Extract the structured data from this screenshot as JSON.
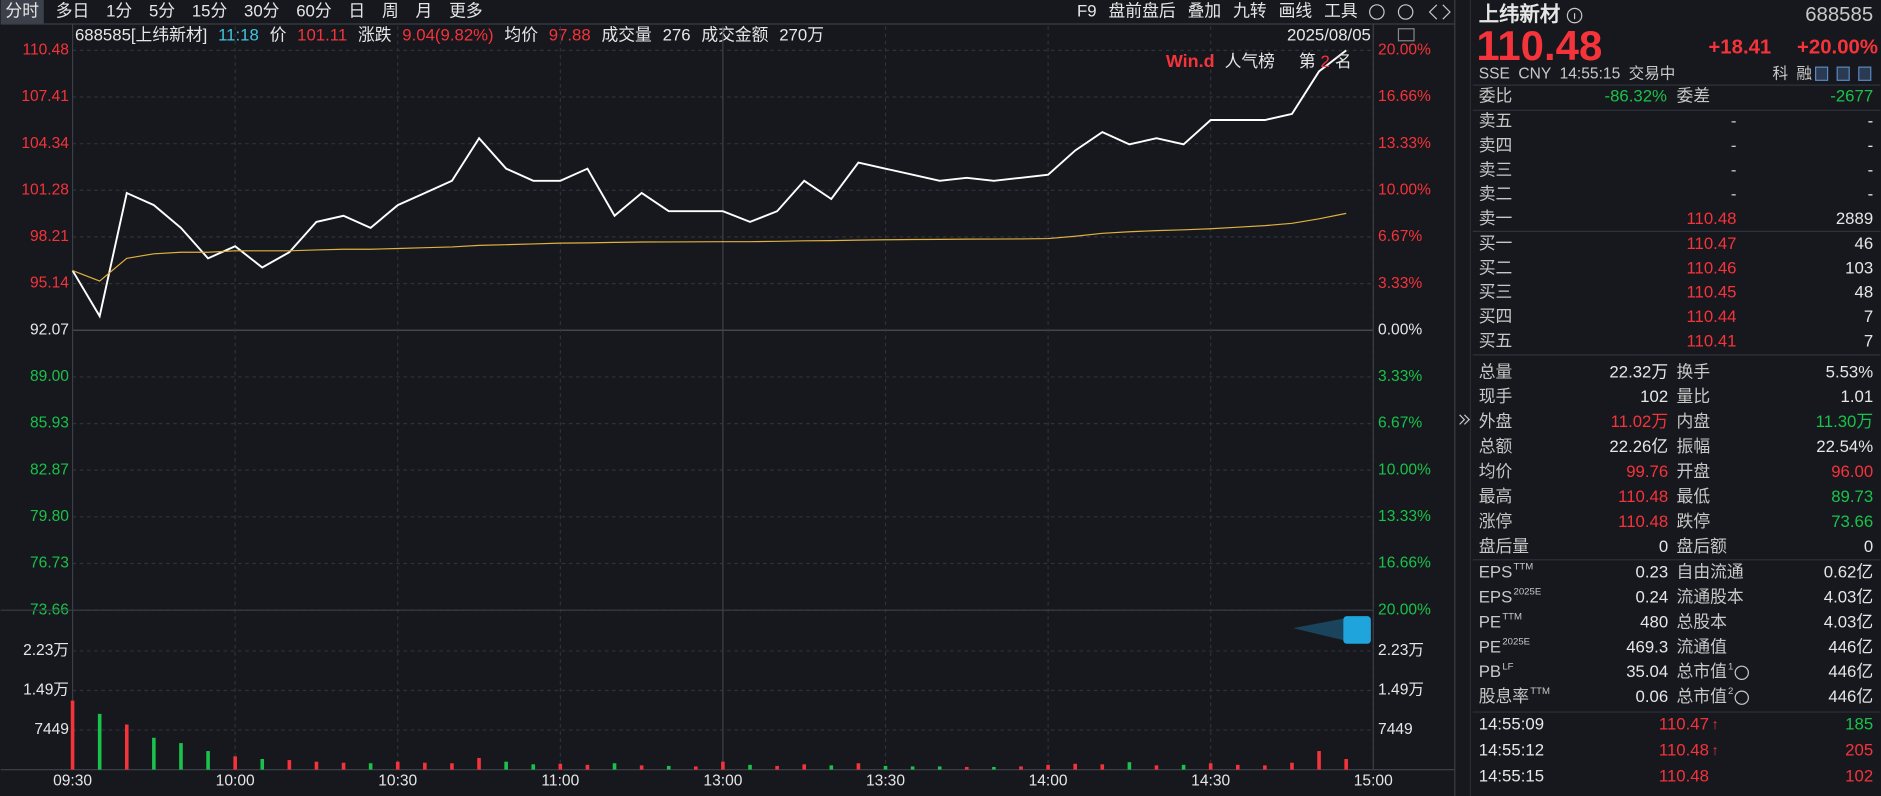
{
  "toolbar": {
    "periods": [
      "分时",
      "多日",
      "1分",
      "5分",
      "15分",
      "30分",
      "60分",
      "日",
      "周",
      "月",
      "更多"
    ],
    "tools": [
      "F9",
      "盘前盘后",
      "叠加",
      "九转",
      "画线",
      "工具"
    ]
  },
  "quote_bar": {
    "code_name": "688585[上纬新材]",
    "time": "11:18",
    "price": "101.11",
    "change_label": "涨跌",
    "change": "9.04(9.82%)",
    "avg": "97.88",
    "vol": "276",
    "amount_label": "成交金额",
    "amount": "270万",
    "date": "2025/08/05"
  },
  "badge": {
    "brand": "Win.d",
    "text": "人气榜",
    "rank_prefix": "第",
    "rank": "2",
    "rank_suffix": "名"
  },
  "chart_data": [
    {
      "type": "line",
      "categories": [
        "09:30",
        "09:35",
        "09:40",
        "09:45",
        "09:50",
        "09:55",
        "10:00",
        "10:05",
        "10:10",
        "10:15",
        "10:20",
        "10:25",
        "10:30",
        "10:35",
        "10:40",
        "10:45",
        "10:50",
        "10:55",
        "11:00",
        "11:05",
        "11:10",
        "11:15",
        "11:20",
        "11:25",
        "13:00",
        "13:05",
        "13:10",
        "13:15",
        "13:20",
        "13:25",
        "13:30",
        "13:35",
        "13:40",
        "13:45",
        "13:50",
        "13:55",
        "14:00",
        "14:05",
        "14:10",
        "14:15",
        "14:20",
        "14:25",
        "14:30",
        "14:35",
        "14:40",
        "14:45",
        "14:50",
        "14:55"
      ],
      "series": [
        {
          "name": "价",
          "color": "#ffffff",
          "values": [
            96.0,
            93.0,
            101.1,
            100.3,
            98.8,
            96.8,
            97.6,
            96.2,
            97.2,
            99.2,
            99.6,
            98.8,
            100.3,
            101.1,
            101.9,
            104.7,
            102.7,
            101.9,
            101.9,
            102.7,
            99.6,
            101.1,
            99.9,
            99.9,
            99.9,
            99.2,
            99.9,
            101.9,
            100.7,
            103.1,
            102.7,
            102.3,
            101.9,
            102.1,
            101.9,
            102.1,
            102.3,
            103.9,
            105.1,
            104.3,
            104.7,
            104.3,
            105.9,
            105.9,
            105.9,
            106.3,
            109.1,
            110.48
          ]
        },
        {
          "name": "均价",
          "color": "#e0b040",
          "values": [
            96.0,
            95.3,
            96.8,
            97.1,
            97.2,
            97.2,
            97.3,
            97.3,
            97.3,
            97.35,
            97.4,
            97.4,
            97.45,
            97.5,
            97.55,
            97.65,
            97.7,
            97.75,
            97.8,
            97.82,
            97.85,
            97.87,
            97.88,
            97.89,
            97.9,
            97.9,
            97.92,
            97.95,
            97.97,
            98.0,
            98.02,
            98.04,
            98.05,
            98.06,
            98.07,
            98.08,
            98.1,
            98.25,
            98.45,
            98.55,
            98.62,
            98.68,
            98.75,
            98.85,
            98.95,
            99.1,
            99.4,
            99.76
          ]
        }
      ],
      "xlim": [
        "09:30",
        "15:00"
      ],
      "ylim": [
        73.66,
        110.48
      ],
      "yticks": [
        110.48,
        107.41,
        104.34,
        101.28,
        98.21,
        95.14,
        92.07,
        {
          "value": 89,
          "label": "89.00"
        },
        85.93,
        82.87,
        {
          "value": 79.8,
          "label": "79.80"
        },
        76.73,
        73.66
      ],
      "y2lim": [
        -20,
        20
      ],
      "y2ticks": [
        {
          "value": 20,
          "label": "20.00%"
        },
        {
          "value": 16.66,
          "label": "16.66%"
        },
        {
          "value": 13.33,
          "label": "13.33%"
        },
        {
          "value": 10,
          "label": "10.00%"
        },
        {
          "value": 6.67,
          "label": "6.67%"
        },
        {
          "value": 3.33,
          "label": "3.33%"
        },
        {
          "value": 0,
          "label": "0.00%"
        },
        {
          "value": -3.33,
          "label": "3.33%"
        },
        {
          "value": -6.67,
          "label": "6.67%"
        },
        {
          "value": -10,
          "label": "10.00%"
        },
        {
          "value": -13.33,
          "label": "13.33%"
        },
        {
          "value": -16.66,
          "label": "16.66%"
        },
        {
          "value": -20,
          "label": "20.00%"
        }
      ],
      "grid": true
    },
    {
      "type": "bar",
      "categories": [
        "09:30",
        "09:35",
        "09:40",
        "09:45",
        "09:50",
        "09:55",
        "10:00",
        "10:05",
        "10:10",
        "10:15",
        "10:20",
        "10:25",
        "10:30",
        "10:35",
        "10:40",
        "10:45",
        "10:50",
        "10:55",
        "11:00",
        "11:05",
        "11:10",
        "11:15",
        "11:20",
        "11:25",
        "13:00",
        "13:05",
        "13:10",
        "13:15",
        "13:20",
        "13:25",
        "13:30",
        "13:35",
        "13:40",
        "13:45",
        "13:50",
        "13:55",
        "14:00",
        "14:05",
        "14:10",
        "14:15",
        "14:20",
        "14:25",
        "14:30",
        "14:35",
        "14:40",
        "14:45",
        "14:50",
        "14:55"
      ],
      "series": [
        {
          "name": "成交量",
          "up_color": "#f5333a",
          "down_color": "#19c24a",
          "values": [
            13000,
            10500,
            8500,
            6000,
            5000,
            3500,
            2500,
            2000,
            1800,
            1500,
            1300,
            1200,
            1500,
            1300,
            1200,
            2200,
            1500,
            1000,
            1100,
            900,
            1200,
            800,
            700,
            600,
            1500,
            900,
            700,
            1000,
            800,
            1200,
            700,
            600,
            600,
            500,
            500,
            600,
            900,
            1100,
            1000,
            1400,
            800,
            900,
            1200,
            900,
            800,
            1300,
            3500,
            2000
          ]
        }
      ],
      "xlim": [
        "09:30",
        "15:00"
      ],
      "ylim": [
        0,
        29796
      ],
      "yticks": [
        {
          "value": 22347,
          "label": "2.23万"
        },
        {
          "value": 14898,
          "label": "1.49万"
        },
        7449
      ],
      "xticks": [
        "09:30",
        "10:00",
        "10:30",
        "11:00",
        "13:00",
        "13:30",
        "14:00",
        "14:30",
        "15:00"
      ]
    }
  ],
  "stock": {
    "name": "上纬新材",
    "code": "688585",
    "price": "110.48",
    "change": "+18.41",
    "change_pct": "+20.00%",
    "exchange": "SSE",
    "currency": "CNY",
    "time": "14:55:15",
    "status": "交易中",
    "tags": [
      "科",
      "融"
    ]
  },
  "order_book": {
    "ratio_label": "委比",
    "ratio": "-86.32%",
    "diff_label": "委差",
    "diff": "-2677",
    "asks": [
      {
        "label": "卖五",
        "price": "-",
        "volume": "-"
      },
      {
        "label": "卖四",
        "price": "-",
        "volume": "-"
      },
      {
        "label": "卖三",
        "price": "-",
        "volume": "-"
      },
      {
        "label": "卖二",
        "price": "-",
        "volume": "-"
      },
      {
        "label": "卖一",
        "price": "110.48",
        "volume": "2889"
      }
    ],
    "bids": [
      {
        "label": "买一",
        "price": "110.47",
        "volume": "46"
      },
      {
        "label": "买二",
        "price": "110.46",
        "volume": "103"
      },
      {
        "label": "买三",
        "price": "110.45",
        "volume": "48"
      },
      {
        "label": "买四",
        "price": "110.44",
        "volume": "7"
      },
      {
        "label": "买五",
        "price": "110.41",
        "volume": "7"
      }
    ]
  },
  "stats": [
    [
      {
        "label": "总量",
        "value": "22.32万",
        "color": "#e6e6e6"
      },
      {
        "label": "换手",
        "value": "5.53%",
        "color": "#e6e6e6"
      }
    ],
    [
      {
        "label": "现手",
        "value": "102",
        "color": "#e6e6e6"
      },
      {
        "label": "量比",
        "value": "1.01",
        "color": "#e6e6e6"
      }
    ],
    [
      {
        "label": "外盘",
        "value": "11.02万",
        "color": "#f5333a"
      },
      {
        "label": "内盘",
        "value": "11.30万",
        "color": "#19c24a"
      }
    ],
    [
      {
        "label": "总额",
        "value": "22.26亿",
        "color": "#e6e6e6"
      },
      {
        "label": "振幅",
        "value": "22.54%",
        "color": "#e6e6e6"
      }
    ],
    [
      {
        "label": "均价",
        "value": "99.76",
        "color": "#f5333a"
      },
      {
        "label": "开盘",
        "value": "96.00",
        "color": "#f5333a"
      }
    ],
    [
      {
        "label": "最高",
        "value": "110.48",
        "color": "#f5333a"
      },
      {
        "label": "最低",
        "value": "89.73",
        "color": "#19c24a"
      }
    ],
    [
      {
        "label": "涨停",
        "value": "110.48",
        "color": "#f5333a"
      },
      {
        "label": "跌停",
        "value": "73.66",
        "color": "#19c24a"
      }
    ],
    [
      {
        "label": "盘后量",
        "value": "0",
        "color": "#e6e6e6"
      },
      {
        "label": "盘后额",
        "value": "0",
        "color": "#e6e6e6"
      }
    ]
  ],
  "fundamentals": [
    [
      {
        "label": "EPS",
        "sup": "TTM",
        "value": "0.23"
      },
      {
        "label": "自由流通",
        "value": "0.62亿"
      }
    ],
    [
      {
        "label": "EPS",
        "sup": "2025E",
        "value": "0.24"
      },
      {
        "label": "流通股本",
        "value": "4.03亿"
      }
    ],
    [
      {
        "label": "PE",
        "sup": "TTM",
        "value": "480"
      },
      {
        "label": "总股本",
        "value": "4.03亿"
      }
    ],
    [
      {
        "label": "PE",
        "sup": "2025E",
        "value": "469.3"
      },
      {
        "label": "流通值",
        "value": "446亿"
      }
    ],
    [
      {
        "label": "PB",
        "sup": "LF",
        "value": "35.04"
      },
      {
        "label": "总市值",
        "sup": "1",
        "value": "446亿"
      }
    ],
    [
      {
        "label": "股息率",
        "sup": "TTM",
        "value": "0.06"
      },
      {
        "label": "总市值",
        "sup": "2",
        "value": "446亿"
      }
    ]
  ],
  "trades": [
    {
      "time": "14:55:09",
      "price": "110.47",
      "arrow": "↑",
      "volume": "185",
      "volume_color": "#19c24a"
    },
    {
      "time": "14:55:12",
      "price": "110.48",
      "arrow": "↑",
      "volume": "205",
      "volume_color": "#f5333a"
    },
    {
      "time": "14:55:15",
      "price": "110.48",
      "volume": "102",
      "volume_color": "#f5333a"
    }
  ]
}
